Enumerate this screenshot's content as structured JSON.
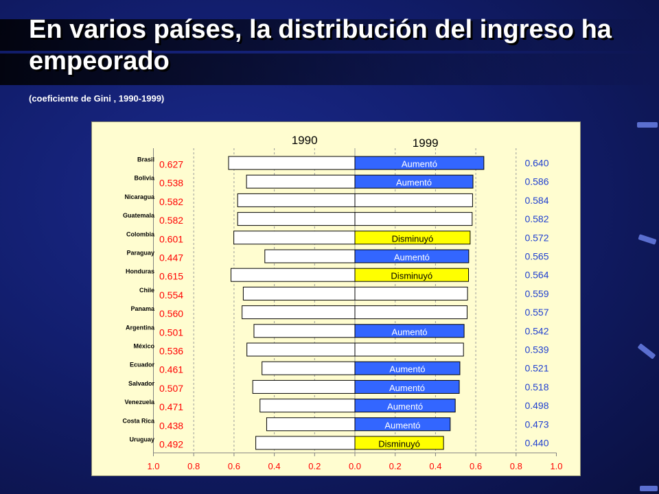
{
  "slide": {
    "title": "En varios países, la distribución del ingreso ha empeorado",
    "subtitle": "(coeficiente de Gini , 1990-1999)"
  },
  "colors": {
    "aumento": "#3366ff",
    "disminuyo": "#ffff00",
    "sin_cambio": "#ffffff",
    "value_1990": "#ff0000",
    "value_1999": "#1f3fd0"
  },
  "chart_data": {
    "type": "bar",
    "layout": "back-to-back horizontal bars",
    "year_left_label": "1990",
    "year_right_label": "1999",
    "categories": [
      "Brasil",
      "Bolivia",
      "Nicaragua",
      "Guatemala",
      "Colombia",
      "Paraguay",
      "Honduras",
      "Chile",
      "Panama",
      "Argentina",
      "México",
      "Ecuador",
      "Salvador",
      "Venezuela",
      "Costa Rica",
      "Uruguay"
    ],
    "series": [
      {
        "name": "1990",
        "values": [
          0.627,
          0.538,
          0.582,
          0.582,
          0.601,
          0.447,
          0.615,
          0.554,
          0.56,
          0.501,
          0.536,
          0.461,
          0.507,
          0.471,
          0.438,
          0.492
        ],
        "labels": [
          "0.627",
          "0.538",
          "0.582",
          "0.582",
          "0.601",
          "0.447",
          "0.615",
          "0.554",
          "0.560",
          "0.501",
          "0.536",
          "0.461",
          "0.507",
          "0.471",
          "0.438",
          "0.492"
        ]
      },
      {
        "name": "1999",
        "values": [
          0.64,
          0.586,
          0.584,
          0.582,
          0.572,
          0.565,
          0.564,
          0.559,
          0.557,
          0.542,
          0.539,
          0.521,
          0.518,
          0.498,
          0.473,
          0.44
        ],
        "labels": [
          "0.640",
          "0.586",
          "0.584",
          "0.582",
          "0.572",
          "0.565",
          "0.564",
          "0.559",
          "0.557",
          "0.542",
          "0.539",
          "0.521",
          "0.518",
          "0.498",
          "0.473",
          "0.440"
        ]
      }
    ],
    "change": [
      "Aumentó",
      "Aumentó",
      "",
      "",
      "Disminuyó",
      "Aumentó",
      "Disminuyó",
      "",
      "",
      "Aumentó",
      "",
      "Aumentó",
      "Aumentó",
      "Aumentó",
      "Aumentó",
      "Disminuyó"
    ],
    "xticks": [
      "1.0",
      "0.8",
      "0.6",
      "0.4",
      "0.2",
      "0.0",
      "0.2",
      "0.4",
      "0.6",
      "0.8",
      "1.0"
    ],
    "xlim": [
      -1.0,
      1.0
    ],
    "grid": true
  }
}
